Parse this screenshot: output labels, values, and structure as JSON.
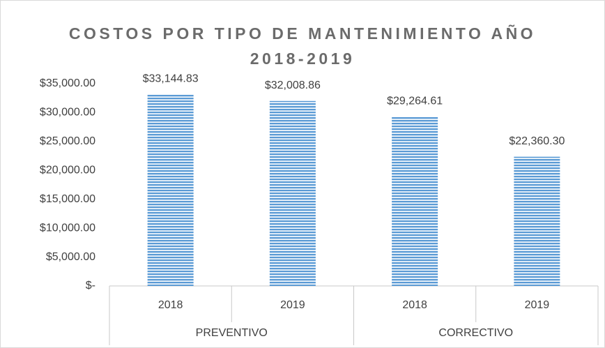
{
  "chart_data": {
    "type": "bar",
    "title": "COSTOS POR TIPO DE MANTENIMIENTO AÑO 2018-2019",
    "categories": [
      "2018",
      "2019",
      "2018",
      "2019"
    ],
    "groups": [
      "PREVENTIVO",
      "CORRECTIVO"
    ],
    "values": [
      33144.83,
      32008.86,
      29264.61,
      22360.3
    ],
    "value_labels": [
      "$33,144.83",
      "$32,008.86",
      "$29,264.61",
      "$22,360.30"
    ],
    "color": "#5b9bd5",
    "ylim": [
      0,
      35000
    ],
    "yticks": [
      {
        "value": 0,
        "label": "$-"
      },
      {
        "value": 5000,
        "label": "$5,000.00"
      },
      {
        "value": 10000,
        "label": "$10,000.00"
      },
      {
        "value": 15000,
        "label": "$15,000.00"
      },
      {
        "value": 20000,
        "label": "$20,000.00"
      },
      {
        "value": 25000,
        "label": "$25,000.00"
      },
      {
        "value": 30000,
        "label": "$30,000.00"
      },
      {
        "value": 35000,
        "label": "$35,000.00"
      }
    ],
    "grid": false
  }
}
